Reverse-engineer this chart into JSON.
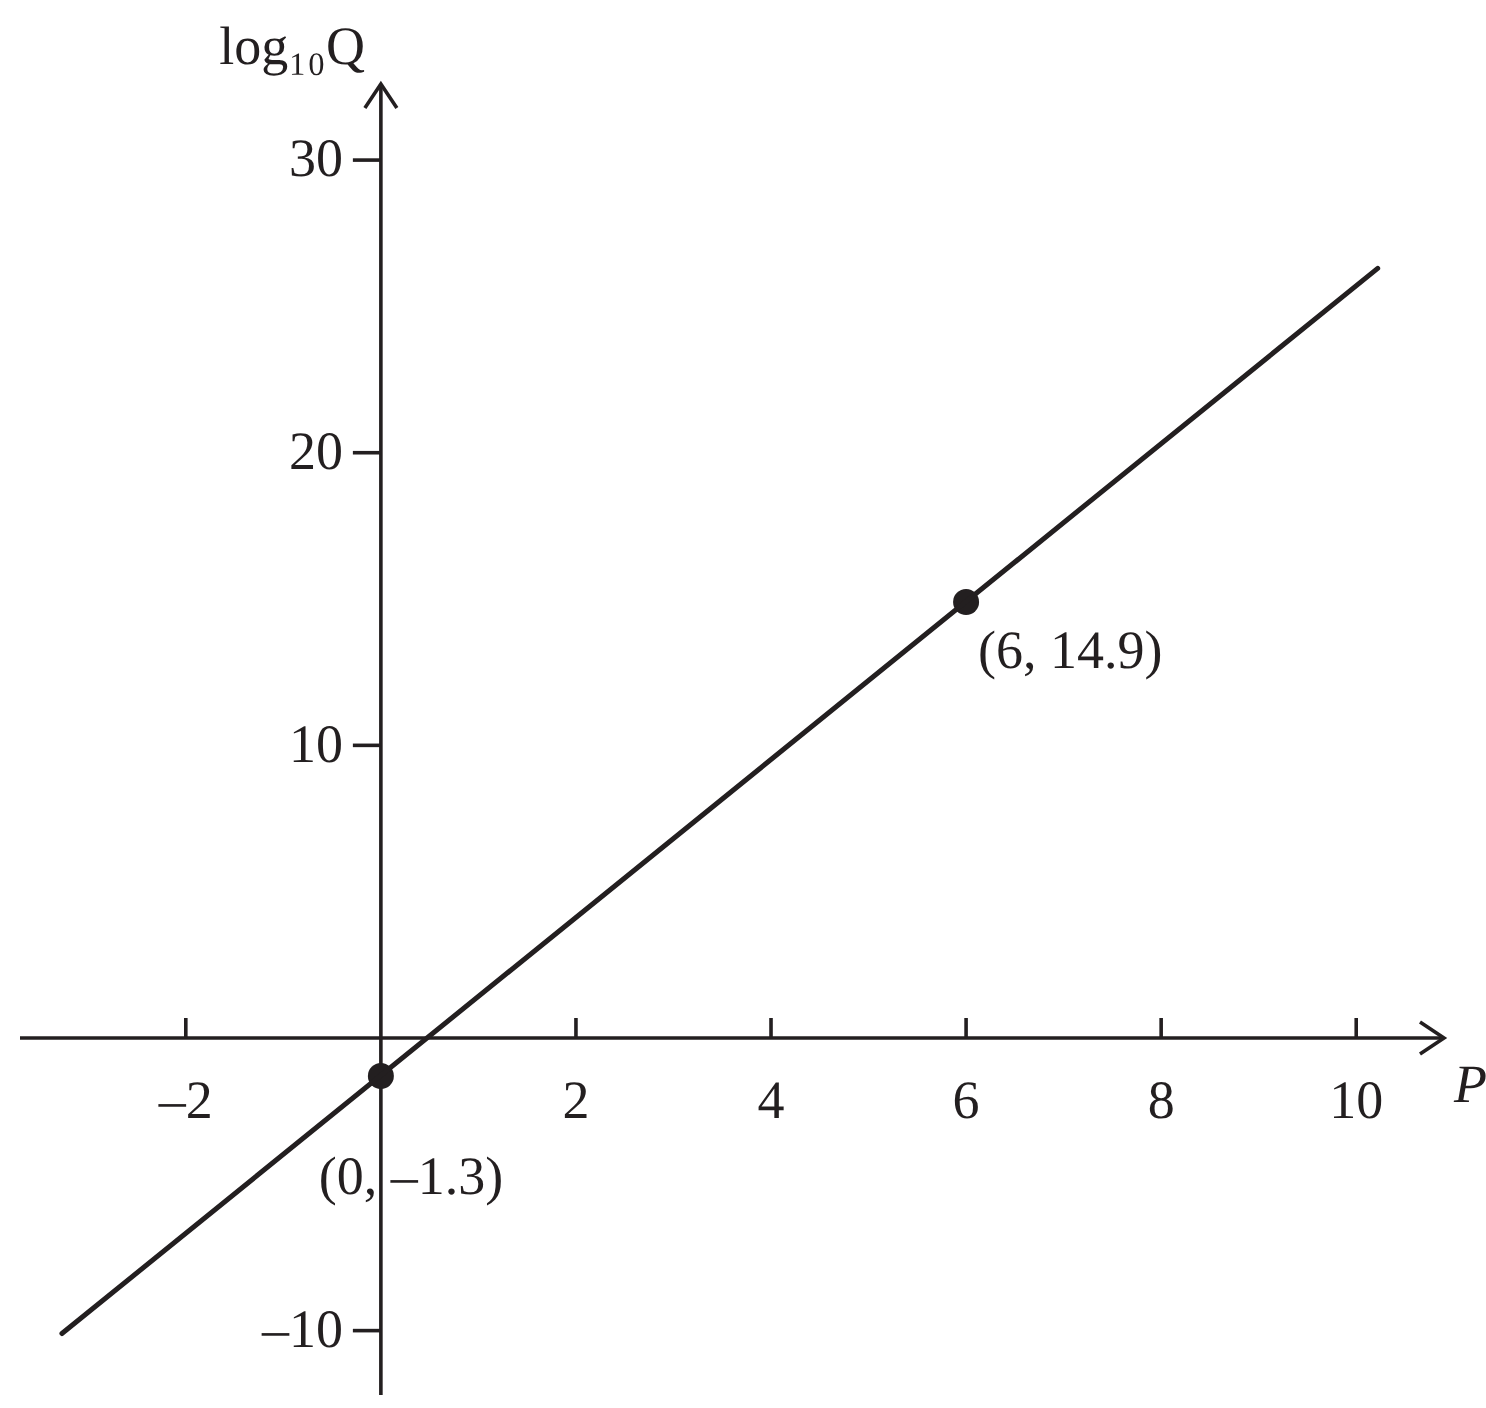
{
  "chart_data": {
    "type": "line",
    "xlabel": "P",
    "ylabel": "log₁₀Q",
    "xlim": [
      -3.7,
      10.9
    ],
    "ylim": [
      -12.2,
      32.6
    ],
    "xticks": [
      {
        "value": -2,
        "label": "–2"
      },
      2,
      4,
      6,
      8,
      10
    ],
    "yticks": [
      {
        "value": -10,
        "label": "–10"
      },
      10,
      20,
      30
    ],
    "series": [
      {
        "color": "#231f20",
        "x": [
          -3.27,
          10.22
        ],
        "values": [
          -10.1,
          26.3
        ],
        "marker": "none"
      },
      {
        "type": "scatter",
        "color": "#231f20",
        "x": [
          0,
          6
        ],
        "values": [
          -1.3,
          14.9
        ],
        "marker": "circle"
      }
    ],
    "annotations": [
      {
        "text": "(0, –1.3)",
        "x": 0,
        "y": -1.3
      },
      {
        "text": "(6, 14.9)",
        "x": 6,
        "y": 14.9
      }
    ]
  }
}
